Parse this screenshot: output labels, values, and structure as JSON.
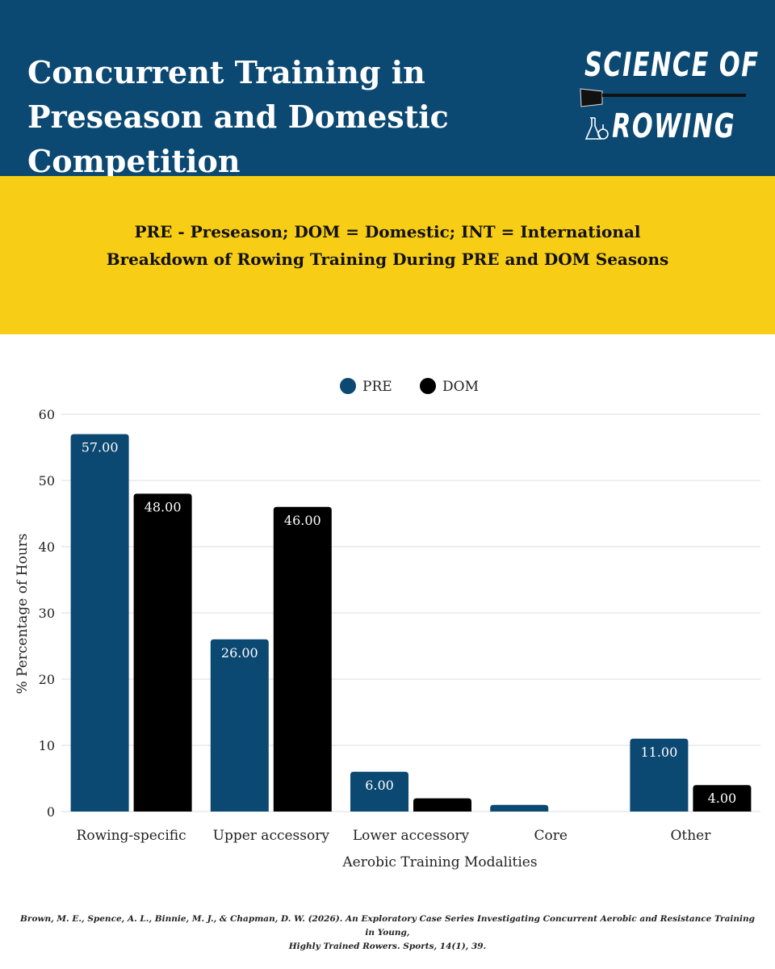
{
  "header": {
    "title": "Concurrent Training in Preseason and Domestic Competition",
    "brand_line1": "SCIENCE OF",
    "brand_line2": "ROWING",
    "colors": {
      "header_bg": "#0b4872",
      "band_bg": "#f7cd16"
    }
  },
  "subtitle": {
    "line1": "PRE - Preseason; DOM = Domestic; INT = International",
    "line2": "Breakdown of Rowing Training During PRE and DOM Seasons"
  },
  "chart_data": {
    "type": "bar",
    "xlabel": "Aerobic Training Modalities",
    "ylabel": "% Percentage of Hours",
    "ylim": [
      0,
      60
    ],
    "yticks": [
      0,
      10,
      20,
      30,
      40,
      50,
      60
    ],
    "grid": true,
    "legend_position": "top-center",
    "categories": [
      "Rowing-specific",
      "Upper accessory",
      "Lower accessory",
      "Core",
      "Other"
    ],
    "series": [
      {
        "name": "PRE",
        "color": "#0b4872",
        "values": [
          57,
          26,
          6,
          1,
          11
        ],
        "labels": [
          "57.00",
          "26.00",
          "6.00",
          "",
          "11.00"
        ]
      },
      {
        "name": "DOM",
        "color": "#000000",
        "values": [
          48,
          46,
          2,
          0,
          4
        ],
        "labels": [
          "48.00",
          "46.00",
          "",
          "",
          "4.00"
        ]
      }
    ]
  },
  "citation": {
    "line1": "Brown, M. E., Spence, A. L., Binnie, M. J., & Chapman, D. W. (2026). An Exploratory Case Series Investigating Concurrent Aerobic and Resistance Training in Young,",
    "line2": "Highly Trained Rowers. Sports, 14(1), 39."
  }
}
